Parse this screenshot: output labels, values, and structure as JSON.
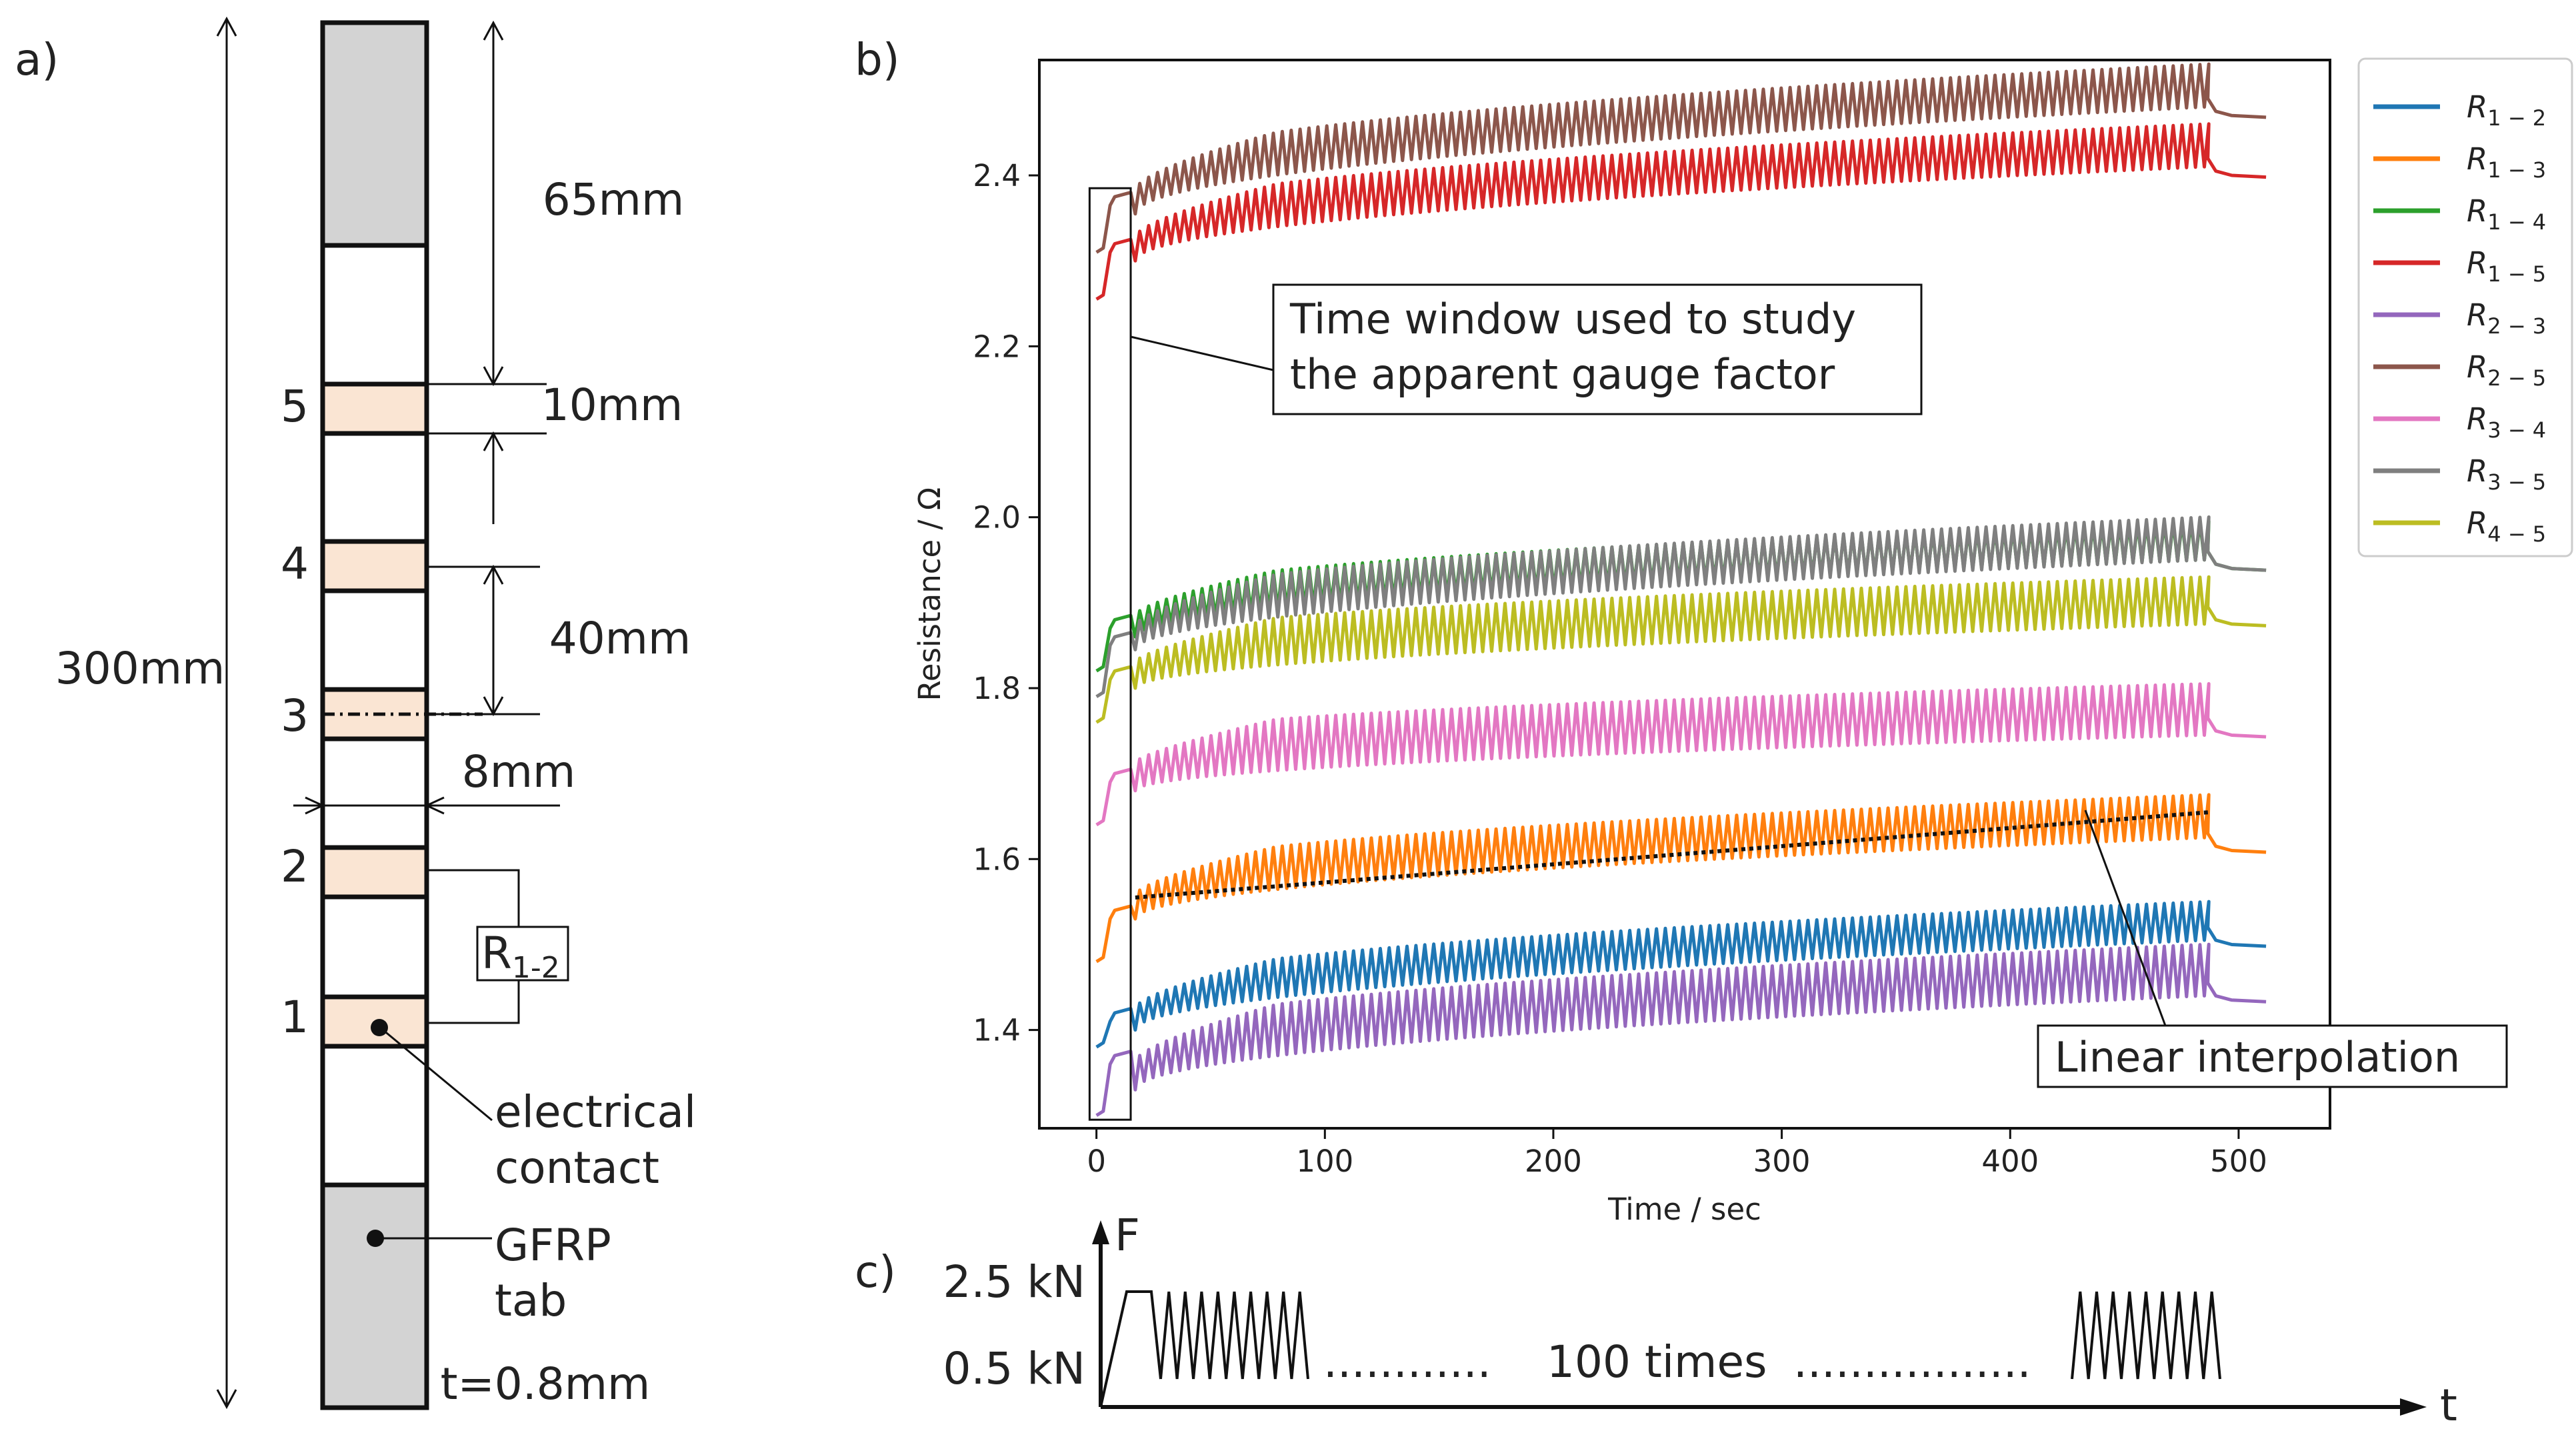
{
  "panel_a": {
    "label": "a)",
    "total_length": "300mm",
    "tab_length": "65mm",
    "contact_width": "10mm",
    "spacing": "40mm",
    "width": "8mm",
    "thickness": "t=0.8mm",
    "contacts": [
      "1",
      "2",
      "3",
      "4",
      "5"
    ],
    "resistor_label": "R",
    "resistor_sub": "1-2",
    "electrical_contact_line1": "electrical",
    "electrical_contact_line2": "contact",
    "tab_line1": "GFRP",
    "tab_line2": "tab",
    "colors": {
      "tab": "#d3d3d3",
      "contact": "#fae5d3"
    }
  },
  "panel_b": {
    "label": "b)",
    "annotation_window_line1": "Time window used to study",
    "annotation_window_line2": "the apparent gauge factor",
    "annotation_interp": "Linear interpolation"
  },
  "panel_c": {
    "label": "c)",
    "axis_y": "F",
    "axis_x": "t",
    "level_high": "2.5 kN",
    "level_low": "0.5 kN",
    "dots_left": "............",
    "repeat_text": "100 times",
    "dots_right": ".................",
    "cycle_counts": {
      "first_block": 9,
      "last_block": 9
    }
  },
  "chart_data": {
    "type": "line",
    "title": "",
    "xlabel": "Time / sec",
    "ylabel": "Resistance / Ω",
    "xlim": [
      -25,
      540
    ],
    "ylim": [
      1.285,
      2.535
    ],
    "xticks": [
      "0",
      "100",
      "200",
      "300",
      "400",
      "500"
    ],
    "yticks": [
      "1.4",
      "1.6",
      "1.8",
      "2.0",
      "2.2",
      "2.4"
    ],
    "legend_position": "outside-top-right",
    "series": [
      {
        "name": "R",
        "sub": "1 − 2",
        "color": "#1f77b4",
        "start": 1.38,
        "plateau": 1.42,
        "trough_start": 1.4,
        "trough_end": 1.505,
        "amplitude": 0.045,
        "final": 1.5
      },
      {
        "name": "R",
        "sub": "1 − 3",
        "color": "#ff7f0e",
        "start": 1.48,
        "plateau": 1.54,
        "trough_start": 1.53,
        "trough_end": 1.625,
        "amplitude": 0.05,
        "final": 1.61
      },
      {
        "name": "R",
        "sub": "1 − 4",
        "color": "#2ca02c",
        "start": 1.82,
        "plateau": 1.88,
        "trough_start": 1.86,
        "trough_end": 1.95,
        "amplitude": 0.045,
        "final": 1.94
      },
      {
        "name": "R",
        "sub": "1 − 5",
        "color": "#d62728",
        "start": 2.255,
        "plateau": 2.32,
        "trough_start": 2.3,
        "trough_end": 2.41,
        "amplitude": 0.05,
        "final": 2.4
      },
      {
        "name": "R",
        "sub": "2 − 3",
        "color": "#9467bd",
        "start": 1.3,
        "plateau": 1.37,
        "trough_start": 1.33,
        "trough_end": 1.44,
        "amplitude": 0.06,
        "final": 1.435
      },
      {
        "name": "R",
        "sub": "2 − 5",
        "color": "#8c564b",
        "start": 2.31,
        "plateau": 2.375,
        "trough_start": 2.355,
        "trough_end": 2.48,
        "amplitude": 0.05,
        "final": 2.47
      },
      {
        "name": "R",
        "sub": "3 − 4",
        "color": "#e377c2",
        "start": 1.64,
        "plateau": 1.7,
        "trough_start": 1.68,
        "trough_end": 1.745,
        "amplitude": 0.06,
        "final": 1.745
      },
      {
        "name": "R",
        "sub": "3 − 5",
        "color": "#7f7f7f",
        "start": 1.79,
        "plateau": 1.86,
        "trough_start": 1.845,
        "trough_end": 1.95,
        "amplitude": 0.05,
        "final": 1.94
      },
      {
        "name": "R",
        "sub": "4 − 5",
        "color": "#bcbd22",
        "start": 1.76,
        "plateau": 1.82,
        "trough_start": 1.8,
        "trough_end": 1.875,
        "amplitude": 0.055,
        "final": 1.875
      }
    ],
    "window": {
      "x": [
        -3,
        15
      ],
      "y": [
        1.295,
        2.385
      ]
    },
    "interpolation": {
      "x": [
        17,
        488
      ],
      "y": [
        1.555,
        1.655
      ]
    },
    "cycle_period_s": 3.9,
    "cycles_end_s": 485,
    "t_end_s": 512
  }
}
